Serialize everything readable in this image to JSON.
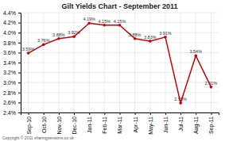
{
  "chart_data": {
    "type": "line",
    "title": "Gilt Yields Chart - September 2011",
    "categories": [
      "Sep-10",
      "Oct-10",
      "Nov-10",
      "Dec-10",
      "Jan-11",
      "Feb-11",
      "Mar-11",
      "Apr-11",
      "May-11",
      "Jun-11",
      "Jul-11",
      "Aug-11",
      "Sep-11"
    ],
    "values": [
      3.59,
      3.76,
      3.88,
      3.92,
      4.19,
      4.15,
      4.15,
      3.88,
      3.83,
      3.91,
      2.59,
      3.54,
      2.91
    ],
    "value_labels": [
      "3.59%",
      "3.76%",
      "3.88%",
      "3.92%",
      "4.19%",
      "4.15%",
      "4.15%",
      "3.88%",
      "3.83%",
      "3.91%",
      "2.59%",
      "3.54%",
      "2.91%"
    ],
    "color": "#cc0000",
    "marker": "circle",
    "data_labels": true,
    "grid": true,
    "ylim": [
      2.4,
      4.4
    ],
    "yticks": [
      {
        "value": 2.4,
        "label": "2.4%"
      },
      {
        "value": 2.6,
        "label": "2.6%"
      },
      {
        "value": 2.8,
        "label": "2.8%"
      },
      {
        "value": 3.0,
        "label": "3.0%"
      },
      {
        "value": 3.2,
        "label": "3.2%"
      },
      {
        "value": 3.4,
        "label": "3.4%"
      },
      {
        "value": 3.6,
        "label": "3.6%"
      },
      {
        "value": 3.8,
        "label": "3.8%"
      },
      {
        "value": 4.0,
        "label": "4.0%"
      },
      {
        "value": 4.2,
        "label": "4.2%"
      },
      {
        "value": 4.4,
        "label": "4.4%"
      }
    ],
    "annotations": [
      "Copyright © 2011 sharingpensions.co.uk"
    ]
  }
}
